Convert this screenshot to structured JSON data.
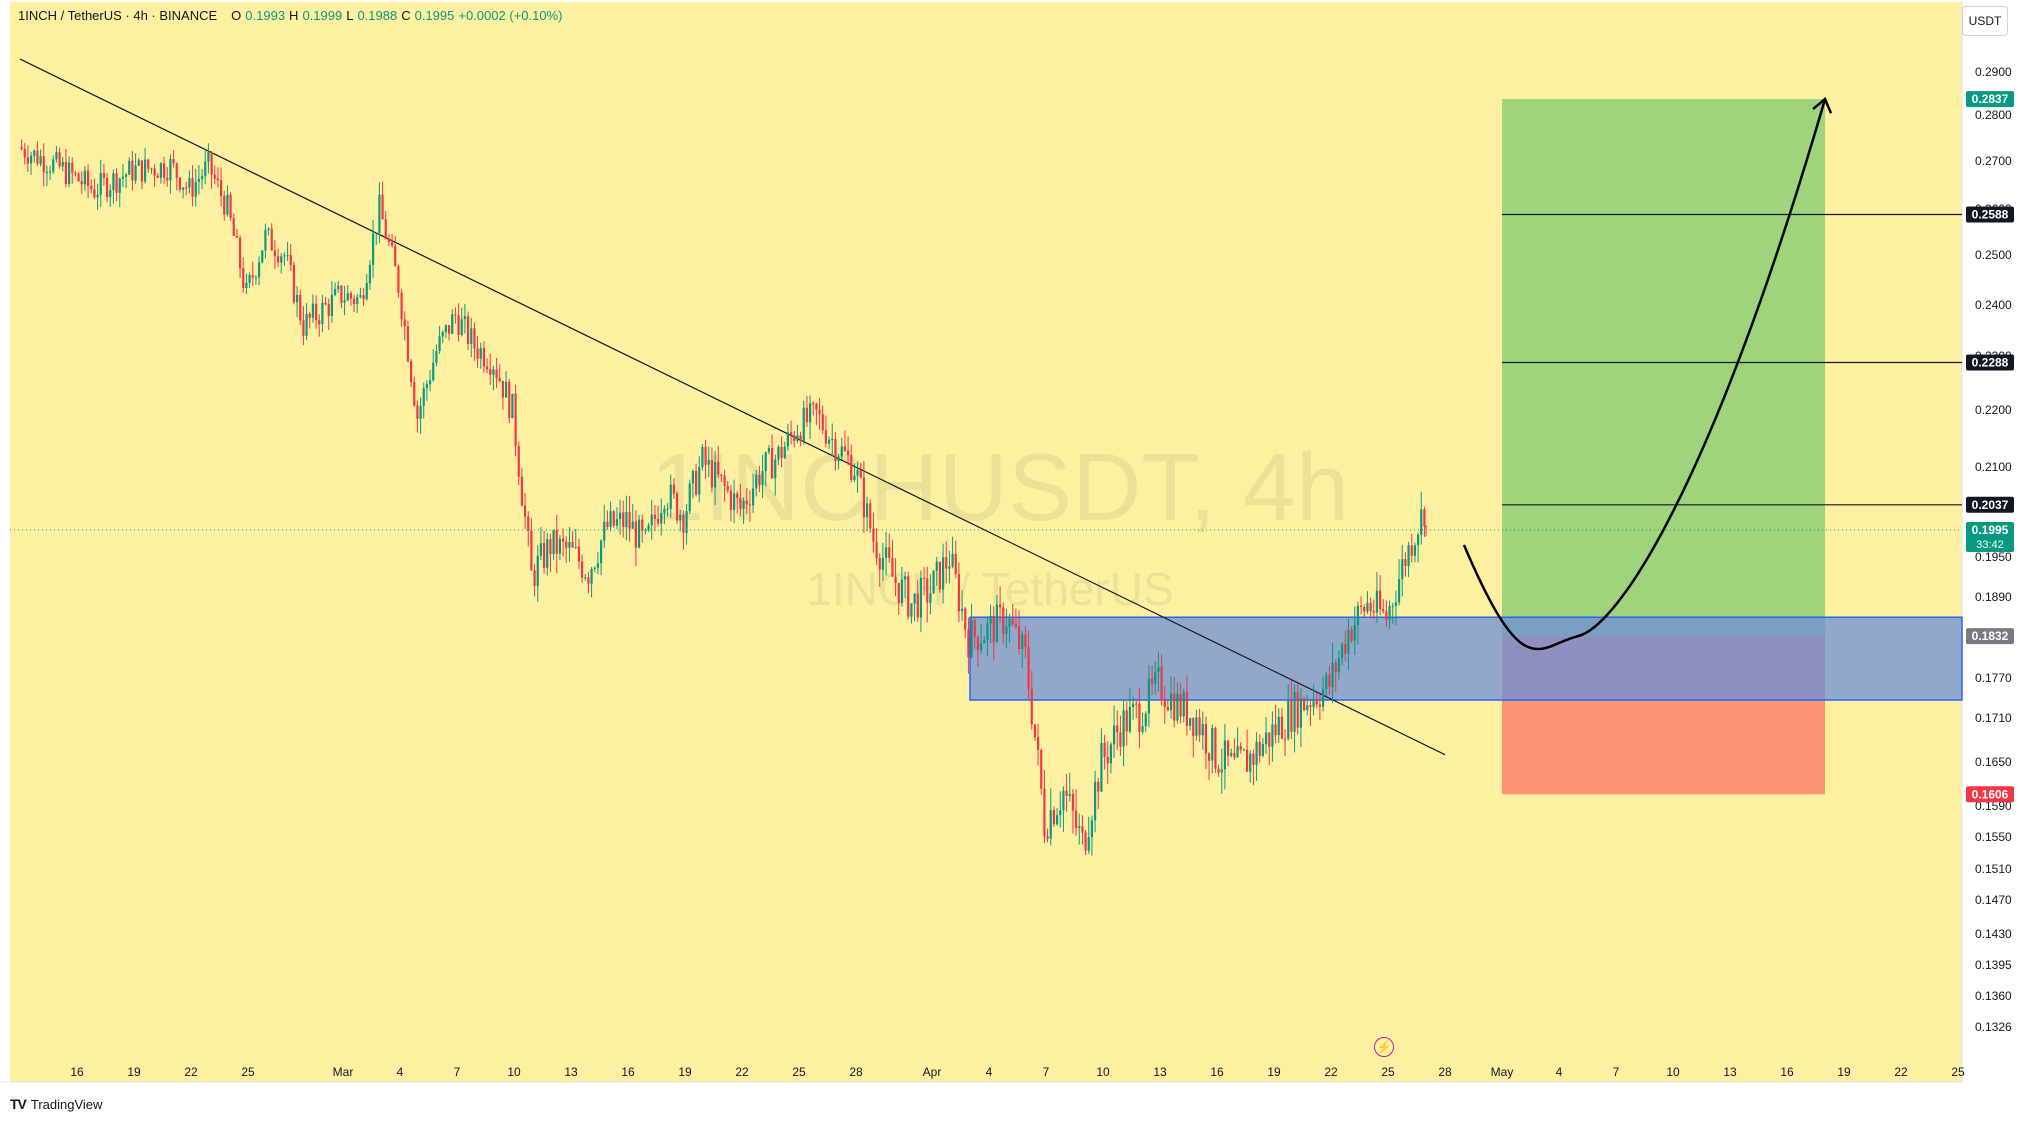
{
  "header": {
    "symbol": "1INCH / TetherUS · 4h · BINANCE",
    "o_label": "O",
    "o_value": "0.1993",
    "h_label": "H",
    "h_value": "0.1999",
    "l_label": "L",
    "l_value": "0.1988",
    "c_label": "C",
    "c_value": "0.1995",
    "change": "+0.0002 (+0.10%)"
  },
  "currency_button": "USDT",
  "watermark": {
    "line1": "1INCHUSDT, 4h",
    "line2": "1INCH / TetherUS"
  },
  "footer_logo": "TradingView",
  "footer_logo_mark": "TV",
  "alert_icon": "lightning-icon",
  "colors": {
    "background": "#fdf1a1",
    "up": "#089981",
    "down": "#f23645",
    "zone_fill": "#6c8fd9",
    "zone_border": "#2962ff",
    "target_fill": "#8fcf76",
    "stop_fill": "#f98a70",
    "trendline": "#131722"
  },
  "chart_data": {
    "type": "candlestick",
    "title": "1INCHUSDT, 4h",
    "subtitle": "1INCH / TetherUS",
    "x_tick_labels": [
      "16",
      "19",
      "22",
      "25",
      "Mar",
      "4",
      "7",
      "10",
      "13",
      "16",
      "19",
      "22",
      "25",
      "28",
      "Apr",
      "4",
      "7",
      "10",
      "13",
      "16",
      "19",
      "22",
      "25",
      "28",
      "May",
      "4",
      "7",
      "10",
      "13",
      "16",
      "19",
      "22",
      "25"
    ],
    "y_tick_labels": [
      "0.2900",
      "0.2800",
      "0.2700",
      "0.2600",
      "0.2500",
      "0.2400",
      "0.2300",
      "0.2200",
      "0.2100",
      "0.1950",
      "0.1890",
      "0.1770",
      "0.1710",
      "0.1650",
      "0.1590",
      "0.1550",
      "0.1510",
      "0.1470",
      "0.1430",
      "0.1395",
      "0.1360",
      "0.1326"
    ],
    "y_ticks": [
      0.29,
      0.28,
      0.27,
      0.26,
      0.25,
      0.24,
      0.23,
      0.22,
      0.21,
      0.195,
      0.189,
      0.177,
      0.171,
      0.165,
      0.159,
      0.155,
      0.151,
      0.147,
      0.143,
      0.1395,
      0.136,
      0.1326
    ],
    "close_path": [
      [
        "Feb 13",
        0.273
      ],
      [
        "Feb 15",
        0.269
      ],
      [
        "Feb 17",
        0.264
      ],
      [
        "Feb 19",
        0.268
      ],
      [
        "Feb 21",
        0.269
      ],
      [
        "Feb 22",
        0.264
      ],
      [
        "Feb 23",
        0.269
      ],
      [
        "Feb 24",
        0.26
      ],
      [
        "Feb 25",
        0.242
      ],
      [
        "Feb 26",
        0.254
      ],
      [
        "Feb 27",
        0.25
      ],
      [
        "Feb 28",
        0.236
      ],
      [
        "Mar 1",
        0.242
      ],
      [
        "Mar 2",
        0.241
      ],
      [
        "Mar 3",
        0.26
      ],
      [
        "Mar 4",
        0.244
      ],
      [
        "Mar 5",
        0.219
      ],
      [
        "Mar 6",
        0.231
      ],
      [
        "Mar 7",
        0.238
      ],
      [
        "Mar 8",
        0.232
      ],
      [
        "Mar 9",
        0.229
      ],
      [
        "Mar 10",
        0.22
      ],
      [
        "Mar 11",
        0.192
      ],
      [
        "Mar 12",
        0.197
      ],
      [
        "Mar 13",
        0.196
      ],
      [
        "Mar 14",
        0.193
      ],
      [
        "Mar 15",
        0.2
      ],
      [
        "Mar 16",
        0.201
      ],
      [
        "Mar 17",
        0.197
      ],
      [
        "Mar 18",
        0.206
      ],
      [
        "Mar 19",
        0.202
      ],
      [
        "Mar 20",
        0.211
      ],
      [
        "Mar 21",
        0.207
      ],
      [
        "Mar 22",
        0.203
      ],
      [
        "Mar 23",
        0.209
      ],
      [
        "Mar 24",
        0.212
      ],
      [
        "Mar 25",
        0.217
      ],
      [
        "Mar 26",
        0.219
      ],
      [
        "Mar 27",
        0.214
      ],
      [
        "Mar 28",
        0.21
      ],
      [
        "Mar 29",
        0.198
      ],
      [
        "Mar 30",
        0.192
      ],
      [
        "Mar 31",
        0.188
      ],
      [
        "Apr 1",
        0.19
      ],
      [
        "Apr 2",
        0.195
      ],
      [
        "Apr 3",
        0.183
      ],
      [
        "Apr 4",
        0.184
      ],
      [
        "Apr 5",
        0.186
      ],
      [
        "Apr 6",
        0.18
      ],
      [
        "Apr 7",
        0.157
      ],
      [
        "Apr 8",
        0.161
      ],
      [
        "Apr 9",
        0.154
      ],
      [
        "Apr 10",
        0.165
      ],
      [
        "Apr 11",
        0.17
      ],
      [
        "Apr 12",
        0.172
      ],
      [
        "Apr 13",
        0.176
      ],
      [
        "Apr 14",
        0.173
      ],
      [
        "Apr 15",
        0.171
      ],
      [
        "Apr 16",
        0.166
      ],
      [
        "Apr 17",
        0.164
      ],
      [
        "Apr 18",
        0.166
      ],
      [
        "Apr 19",
        0.169
      ],
      [
        "Apr 20",
        0.172
      ],
      [
        "Apr 21",
        0.174
      ],
      [
        "Apr 22",
        0.176
      ],
      [
        "Apr 23",
        0.184
      ],
      [
        "Apr 24",
        0.188
      ],
      [
        "Apr 25",
        0.186
      ],
      [
        "Apr 26",
        0.195
      ],
      [
        "Apr 27",
        0.203
      ],
      [
        "Apr 27 ",
        0.1995
      ]
    ],
    "trendline": {
      "start": [
        "Feb 13",
        0.293
      ],
      "end": [
        "Apr 28",
        0.166
      ]
    },
    "demand_zone": {
      "from": "Apr 3",
      "to": "Jun 2",
      "top": 0.186,
      "bottom": 0.1737
    },
    "position": {
      "type": "long",
      "from": "May 1",
      "to": "May 18",
      "entry": 0.1832,
      "stop": 0.1606,
      "target": 0.2837,
      "take_profits": [
        0.2037,
        0.2288,
        0.2588
      ]
    },
    "price_labels": [
      {
        "text": "0.2837",
        "value": 0.2837,
        "style": "target"
      },
      {
        "text": "0.2588",
        "value": 0.2588,
        "style": "level"
      },
      {
        "text": "0.2288",
        "value": 0.2288,
        "style": "level"
      },
      {
        "text": "0.2037",
        "value": 0.2037,
        "style": "level"
      },
      {
        "text": "0.1995",
        "value": 0.1995,
        "style": "last",
        "sub": "33:42"
      },
      {
        "text": "0.1832",
        "value": 0.1832,
        "style": "entry"
      },
      {
        "text": "0.1606",
        "value": 0.1606,
        "style": "stop"
      }
    ],
    "projection": {
      "points": [
        [
          "Apr 29",
          0.197
        ],
        [
          "May 5",
          0.1832
        ],
        [
          "May 11",
          0.21
        ],
        [
          "May 18",
          0.2837
        ]
      ]
    },
    "last_price": 0.1995,
    "grid": false
  }
}
